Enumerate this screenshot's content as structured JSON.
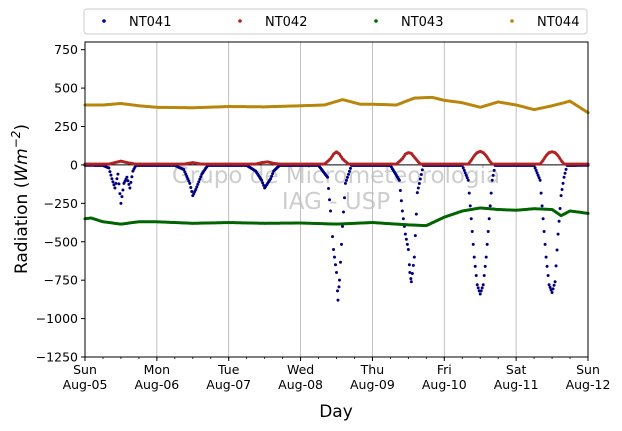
{
  "chart_data": {
    "type": "scatter",
    "xlabel": "Day",
    "ylabel": {
      "prefix": "Radiation (",
      "unit_main": "Wm",
      "unit_exp": "−2",
      "suffix": ")"
    },
    "watermark": {
      "line1": "Grupo de Micrometeorologia",
      "line2": "IAG - USP"
    },
    "xlim": [
      "2018-08-05",
      "2018-08-12"
    ],
    "ylim": [
      -1250,
      800
    ],
    "yticks": [
      -1250,
      -1000,
      -750,
      -500,
      -250,
      0,
      250,
      500,
      750
    ],
    "ytick_labels": [
      "−1250",
      "−1000",
      "−750",
      "−500",
      "−250",
      "0",
      "250",
      "500",
      "750"
    ],
    "xticks": [
      {
        "date": "2018-08-05",
        "day": "Sun",
        "date_label": "Aug-05"
      },
      {
        "date": "2018-08-06",
        "day": "Mon",
        "date_label": "Aug-06"
      },
      {
        "date": "2018-08-07",
        "day": "Tue",
        "date_label": "Aug-07"
      },
      {
        "date": "2018-08-08",
        "day": "Wed",
        "date_label": "Aug-08"
      },
      {
        "date": "2018-08-09",
        "day": "Thu",
        "date_label": "Aug-09"
      },
      {
        "date": "2018-08-10",
        "day": "Fri",
        "date_label": "Aug-10"
      },
      {
        "date": "2018-08-11",
        "day": "Sat",
        "date_label": "Aug-11"
      },
      {
        "date": "2018-08-12",
        "day": "Sun",
        "date_label": "Aug-12"
      }
    ],
    "grid": "vertical",
    "zero_line": 0,
    "legend_placement": "top (above plot)",
    "series": [
      {
        "name": "NT041",
        "color": "#000080",
        "points": [
          [
            "2018-08-05T00:00",
            -2
          ],
          [
            "2018-08-05T06:00",
            -3
          ],
          [
            "2018-08-05T08:00",
            -20
          ],
          [
            "2018-08-05T09:00",
            -90
          ],
          [
            "2018-08-05T10:00",
            -150
          ],
          [
            "2018-08-05T11:00",
            -60
          ],
          [
            "2018-08-05T12:00",
            -250
          ],
          [
            "2018-08-05T13:00",
            -120
          ],
          [
            "2018-08-05T14:00",
            -80
          ],
          [
            "2018-08-05T15:00",
            -150
          ],
          [
            "2018-08-05T16:00",
            -40
          ],
          [
            "2018-08-05T17:00",
            -3
          ],
          [
            "2018-08-06T06:00",
            -3
          ],
          [
            "2018-08-06T09:00",
            -30
          ],
          [
            "2018-08-06T11:00",
            -120
          ],
          [
            "2018-08-06T12:00",
            -200
          ],
          [
            "2018-08-06T13:00",
            -160
          ],
          [
            "2018-08-06T14:00",
            -110
          ],
          [
            "2018-08-06T15:00",
            -60
          ],
          [
            "2018-08-06T17:00",
            -3
          ],
          [
            "2018-08-07T06:00",
            -3
          ],
          [
            "2018-08-07T09:00",
            -40
          ],
          [
            "2018-08-07T11:00",
            -100
          ],
          [
            "2018-08-07T12:00",
            -150
          ],
          [
            "2018-08-07T13:00",
            -120
          ],
          [
            "2018-08-07T14:00",
            -90
          ],
          [
            "2018-08-07T15:00",
            -40
          ],
          [
            "2018-08-07T17:00",
            -3
          ],
          [
            "2018-08-08T06:00",
            -3
          ],
          [
            "2018-08-08T09:00",
            -80
          ],
          [
            "2018-08-08T10:00",
            -300
          ],
          [
            "2018-08-08T11:00",
            -550
          ],
          [
            "2018-08-08T12:00",
            -700
          ],
          [
            "2018-08-08T12:30",
            -880
          ],
          [
            "2018-08-08T13:00",
            -750
          ],
          [
            "2018-08-08T14:00",
            -400
          ],
          [
            "2018-08-08T15:00",
            -120
          ],
          [
            "2018-08-08T17:00",
            -3
          ],
          [
            "2018-08-09T06:00",
            -3
          ],
          [
            "2018-08-09T09:00",
            -100
          ],
          [
            "2018-08-09T10:00",
            -300
          ],
          [
            "2018-08-09T11:00",
            -450
          ],
          [
            "2018-08-09T12:00",
            -550
          ],
          [
            "2018-08-09T12:30",
            -700
          ],
          [
            "2018-08-09T13:00",
            -760
          ],
          [
            "2018-08-09T14:00",
            -600
          ],
          [
            "2018-08-09T15:00",
            -180
          ],
          [
            "2018-08-09T17:00",
            -3
          ],
          [
            "2018-08-10T06:00",
            -3
          ],
          [
            "2018-08-10T08:00",
            -100
          ],
          [
            "2018-08-10T09:00",
            -350
          ],
          [
            "2018-08-10T10:00",
            -600
          ],
          [
            "2018-08-10T11:00",
            -780
          ],
          [
            "2018-08-10T12:00",
            -840
          ],
          [
            "2018-08-10T13:00",
            -780
          ],
          [
            "2018-08-10T14:00",
            -600
          ],
          [
            "2018-08-10T15:00",
            -350
          ],
          [
            "2018-08-10T16:00",
            -100
          ],
          [
            "2018-08-10T17:00",
            -3
          ],
          [
            "2018-08-11T06:00",
            -3
          ],
          [
            "2018-08-11T08:00",
            -100
          ],
          [
            "2018-08-11T09:00",
            -350
          ],
          [
            "2018-08-11T10:00",
            -600
          ],
          [
            "2018-08-11T11:00",
            -780
          ],
          [
            "2018-08-11T12:00",
            -830
          ],
          [
            "2018-08-11T13:00",
            -760
          ],
          [
            "2018-08-11T14:00",
            -450
          ],
          [
            "2018-08-11T15:00",
            -200
          ],
          [
            "2018-08-11T16:00",
            -80
          ],
          [
            "2018-08-11T17:00",
            -3
          ],
          [
            "2018-08-12T00:00",
            -2
          ]
        ]
      },
      {
        "name": "NT042",
        "color": "#b22222",
        "points": [
          [
            "2018-08-05T00:00",
            5
          ],
          [
            "2018-08-05T08:00",
            5
          ],
          [
            "2018-08-05T10:00",
            15
          ],
          [
            "2018-08-05T12:00",
            25
          ],
          [
            "2018-08-05T14:00",
            15
          ],
          [
            "2018-08-05T17:00",
            5
          ],
          [
            "2018-08-06T09:00",
            5
          ],
          [
            "2018-08-06T12:00",
            15
          ],
          [
            "2018-08-06T15:00",
            5
          ],
          [
            "2018-08-07T09:00",
            5
          ],
          [
            "2018-08-07T11:00",
            15
          ],
          [
            "2018-08-07T13:00",
            20
          ],
          [
            "2018-08-07T15:00",
            10
          ],
          [
            "2018-08-07T17:00",
            5
          ],
          [
            "2018-08-08T08:00",
            5
          ],
          [
            "2018-08-08T10:00",
            40
          ],
          [
            "2018-08-08T11:00",
            70
          ],
          [
            "2018-08-08T12:00",
            85
          ],
          [
            "2018-08-08T13:00",
            70
          ],
          [
            "2018-08-08T14:00",
            40
          ],
          [
            "2018-08-08T16:00",
            5
          ],
          [
            "2018-08-09T08:00",
            5
          ],
          [
            "2018-08-09T10:00",
            40
          ],
          [
            "2018-08-09T11:00",
            70
          ],
          [
            "2018-08-09T12:00",
            80
          ],
          [
            "2018-08-09T13:00",
            75
          ],
          [
            "2018-08-09T14:00",
            50
          ],
          [
            "2018-08-09T16:00",
            5
          ],
          [
            "2018-08-10T08:00",
            5
          ],
          [
            "2018-08-10T09:00",
            30
          ],
          [
            "2018-08-10T10:00",
            60
          ],
          [
            "2018-08-10T11:00",
            80
          ],
          [
            "2018-08-10T12:00",
            88
          ],
          [
            "2018-08-10T13:00",
            80
          ],
          [
            "2018-08-10T14:00",
            60
          ],
          [
            "2018-08-10T15:00",
            30
          ],
          [
            "2018-08-10T16:00",
            5
          ],
          [
            "2018-08-11T08:00",
            5
          ],
          [
            "2018-08-11T09:00",
            30
          ],
          [
            "2018-08-11T10:00",
            60
          ],
          [
            "2018-08-11T11:00",
            80
          ],
          [
            "2018-08-11T12:00",
            86
          ],
          [
            "2018-08-11T13:00",
            80
          ],
          [
            "2018-08-11T14:00",
            60
          ],
          [
            "2018-08-11T15:00",
            30
          ],
          [
            "2018-08-11T16:00",
            5
          ],
          [
            "2018-08-12T00:00",
            5
          ]
        ]
      },
      {
        "name": "NT043",
        "color": "#006400",
        "points": [
          [
            "2018-08-05T00:00",
            -350
          ],
          [
            "2018-08-05T02:00",
            -345
          ],
          [
            "2018-08-05T06:00",
            -370
          ],
          [
            "2018-08-05T12:00",
            -385
          ],
          [
            "2018-08-05T18:00",
            -370
          ],
          [
            "2018-08-06T00:00",
            -370
          ],
          [
            "2018-08-06T12:00",
            -380
          ],
          [
            "2018-08-07T00:00",
            -375
          ],
          [
            "2018-08-07T12:00",
            -380
          ],
          [
            "2018-08-08T00:00",
            -378
          ],
          [
            "2018-08-08T12:00",
            -385
          ],
          [
            "2018-08-09T00:00",
            -375
          ],
          [
            "2018-08-09T12:00",
            -390
          ],
          [
            "2018-08-09T18:00",
            -395
          ],
          [
            "2018-08-10T00:00",
            -340
          ],
          [
            "2018-08-10T06:00",
            -300
          ],
          [
            "2018-08-10T12:00",
            -280
          ],
          [
            "2018-08-10T18:00",
            -290
          ],
          [
            "2018-08-11T00:00",
            -295
          ],
          [
            "2018-08-11T06:00",
            -285
          ],
          [
            "2018-08-11T12:00",
            -290
          ],
          [
            "2018-08-11T15:00",
            -330
          ],
          [
            "2018-08-11T18:00",
            -300
          ],
          [
            "2018-08-12T00:00",
            -315
          ]
        ]
      },
      {
        "name": "NT044",
        "color": "#b8860b",
        "points": [
          [
            "2018-08-05T00:00",
            390
          ],
          [
            "2018-08-05T06:00",
            390
          ],
          [
            "2018-08-05T12:00",
            400
          ],
          [
            "2018-08-05T18:00",
            385
          ],
          [
            "2018-08-06T00:00",
            375
          ],
          [
            "2018-08-06T12:00",
            372
          ],
          [
            "2018-08-07T00:00",
            380
          ],
          [
            "2018-08-07T12:00",
            378
          ],
          [
            "2018-08-08T00:00",
            385
          ],
          [
            "2018-08-08T08:00",
            390
          ],
          [
            "2018-08-08T14:00",
            425
          ],
          [
            "2018-08-08T20:00",
            395
          ],
          [
            "2018-08-09T00:00",
            395
          ],
          [
            "2018-08-09T08:00",
            390
          ],
          [
            "2018-08-09T14:00",
            435
          ],
          [
            "2018-08-09T20:00",
            440
          ],
          [
            "2018-08-10T00:00",
            420
          ],
          [
            "2018-08-10T06:00",
            405
          ],
          [
            "2018-08-10T12:00",
            375
          ],
          [
            "2018-08-10T18:00",
            410
          ],
          [
            "2018-08-11T00:00",
            390
          ],
          [
            "2018-08-11T06:00",
            360
          ],
          [
            "2018-08-11T12:00",
            385
          ],
          [
            "2018-08-11T18:00",
            415
          ],
          [
            "2018-08-12T00:00",
            340
          ]
        ]
      }
    ]
  }
}
